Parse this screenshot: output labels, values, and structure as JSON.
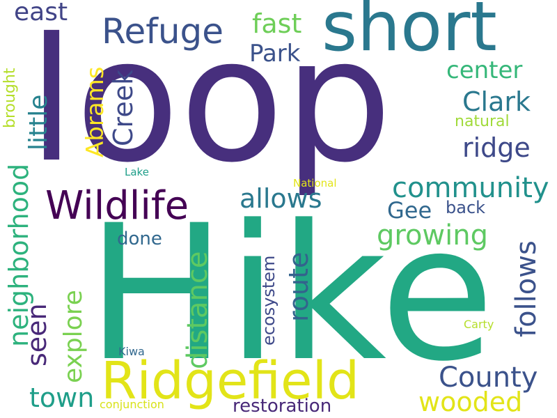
{
  "words": {
    "loop": {
      "text": "loop",
      "color": "#472f7d"
    },
    "hike": {
      "text": "Hike",
      "color": "#22a884"
    },
    "short": {
      "text": "short",
      "color": "#2a788e"
    },
    "ridgefield": {
      "text": "Ridgefield",
      "color": "#e2e418"
    },
    "wildlife": {
      "text": "Wildlife",
      "color": "#440154"
    },
    "refuge": {
      "text": "Refuge",
      "color": "#3b528b"
    },
    "community": {
      "text": "community",
      "color": "#21918c"
    },
    "neighborhood": {
      "text": "neighborhood",
      "color": "#2db27d"
    },
    "distance": {
      "text": "distance",
      "color": "#5ec962"
    },
    "county": {
      "text": "County",
      "color": "#3b528b"
    },
    "wooded": {
      "text": "wooded",
      "color": "#e2e418"
    },
    "growing": {
      "text": "growing",
      "color": "#5ec962"
    },
    "follows": {
      "text": "follows",
      "color": "#3b528b"
    },
    "route": {
      "text": "route",
      "color": "#33638d"
    },
    "explore": {
      "text": "explore",
      "color": "#7ad151"
    },
    "allows": {
      "text": "allows",
      "color": "#2a788e"
    },
    "seen": {
      "text": "seen",
      "color": "#482878"
    },
    "town": {
      "text": "town",
      "color": "#1f9e89"
    },
    "creek": {
      "text": "Creek",
      "color": "#3e4989"
    },
    "little": {
      "text": "little",
      "color": "#26828e"
    },
    "abrams": {
      "text": "Abrams",
      "color": "#fde725"
    },
    "clark": {
      "text": "Clark",
      "color": "#2a788e"
    },
    "ridge": {
      "text": "ridge",
      "color": "#3e4989"
    },
    "center": {
      "text": "center",
      "color": "#35b779"
    },
    "park": {
      "text": "Park",
      "color": "#3b528b"
    },
    "fast": {
      "text": "fast",
      "color": "#6ece58"
    },
    "east": {
      "text": "east",
      "color": "#414487"
    },
    "gee": {
      "text": "Gee",
      "color": "#31688e"
    },
    "back": {
      "text": "back",
      "color": "#3b528b"
    },
    "done": {
      "text": "done",
      "color": "#31688e"
    },
    "restoration": {
      "text": "restoration",
      "color": "#482878"
    },
    "ecosystem": {
      "text": "ecosystem",
      "color": "#3e4989"
    },
    "natural": {
      "text": "natural",
      "color": "#a0da39"
    },
    "brought": {
      "text": "brought",
      "color": "#b5de2b"
    },
    "lake": {
      "text": "Lake",
      "color": "#1f9e89"
    },
    "national": {
      "text": "National",
      "color": "#e2e418"
    },
    "carty": {
      "text": "Carty",
      "color": "#b5de2b"
    },
    "kiwa": {
      "text": "Kiwa",
      "color": "#31688e"
    },
    "conjunction": {
      "text": "conjunction",
      "color": "#d8e219"
    }
  }
}
